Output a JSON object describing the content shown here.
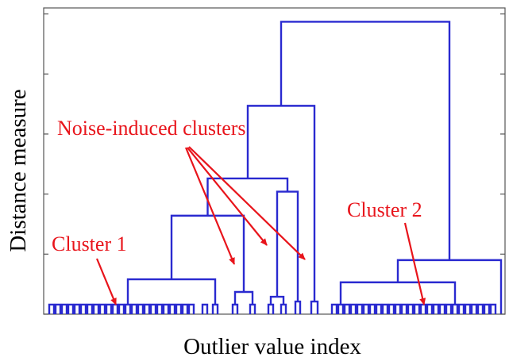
{
  "chart_data": {
    "type": "dendrogram",
    "x_label": "Outlier value index",
    "y_label": "Distance measure",
    "annotations": {
      "noise": "Noise-induced clusters",
      "cluster1": "Cluster 1",
      "cluster2": "Cluster 2"
    },
    "color": "#2a2ad0",
    "xlim": [
      0,
      58.1
    ],
    "ylim": [
      0,
      5.1
    ],
    "yticks": [
      0,
      1,
      2,
      3,
      4,
      5
    ],
    "links": [
      [
        0.7,
        1.3,
        0,
        0,
        0.16
      ],
      [
        1.5,
        2.1,
        0,
        0,
        0.16
      ],
      [
        2.3,
        2.9,
        0,
        0,
        0.16
      ],
      [
        3.1,
        3.7,
        0,
        0,
        0.16
      ],
      [
        3.9,
        4.5,
        0,
        0,
        0.16
      ],
      [
        4.7,
        5.3,
        0,
        0,
        0.16
      ],
      [
        5.5,
        6.1,
        0,
        0,
        0.16
      ],
      [
        6.3,
        6.9,
        0,
        0,
        0.16
      ],
      [
        7.1,
        7.7,
        0,
        0,
        0.16
      ],
      [
        7.9,
        8.5,
        0,
        0,
        0.16
      ],
      [
        8.7,
        9.3,
        0,
        0,
        0.16
      ],
      [
        9.5,
        10.1,
        0,
        0,
        0.16
      ],
      [
        10.3,
        10.9,
        0,
        0,
        0.16
      ],
      [
        11.1,
        11.7,
        0,
        0,
        0.16
      ],
      [
        11.9,
        12.5,
        0,
        0,
        0.16
      ],
      [
        12.7,
        13.3,
        0,
        0,
        0.16
      ],
      [
        13.5,
        14.1,
        0,
        0,
        0.16
      ],
      [
        14.3,
        14.9,
        0,
        0,
        0.16
      ],
      [
        15.1,
        15.7,
        0,
        0,
        0.16
      ],
      [
        15.9,
        16.5,
        0,
        0,
        0.16
      ],
      [
        16.7,
        17.3,
        0,
        0,
        0.16
      ],
      [
        17.5,
        18.1,
        0,
        0,
        0.16
      ],
      [
        18.3,
        18.9,
        0,
        0,
        0.16
      ],
      [
        20.0,
        20.6,
        0,
        0,
        0.16
      ],
      [
        21.3,
        21.9,
        0,
        0,
        0.16
      ],
      [
        10.6,
        21.6,
        0.16,
        0.16,
        0.58
      ],
      [
        23.8,
        24.4,
        0,
        0,
        0.16
      ],
      [
        26.0,
        26.6,
        0,
        0,
        0.16
      ],
      [
        24.1,
        26.3,
        0.16,
        0.16,
        0.37
      ],
      [
        16.1,
        25.2,
        0.58,
        0.37,
        1.64
      ],
      [
        28.3,
        28.9,
        0,
        0,
        0.16
      ],
      [
        29.9,
        30.5,
        0,
        0,
        0.16
      ],
      [
        28.6,
        30.2,
        0.16,
        0.16,
        0.29
      ],
      [
        31.7,
        32.3,
        0,
        0,
        0.21
      ],
      [
        29.4,
        32.0,
        0.29,
        0.21,
        2.04
      ],
      [
        20.65,
        30.7,
        1.64,
        2.04,
        2.26
      ],
      [
        33.7,
        34.5,
        0,
        0,
        0.21
      ],
      [
        25.7,
        34.1,
        2.26,
        0.21,
        3.47
      ],
      [
        36.3,
        36.9,
        0,
        0,
        0.16
      ],
      [
        37.1,
        37.7,
        0,
        0,
        0.16
      ],
      [
        37.9,
        38.5,
        0,
        0,
        0.16
      ],
      [
        38.7,
        39.3,
        0,
        0,
        0.16
      ],
      [
        39.5,
        40.1,
        0,
        0,
        0.16
      ],
      [
        40.3,
        40.9,
        0,
        0,
        0.16
      ],
      [
        41.1,
        41.7,
        0,
        0,
        0.16
      ],
      [
        41.9,
        42.5,
        0,
        0,
        0.16
      ],
      [
        42.7,
        43.3,
        0,
        0,
        0.16
      ],
      [
        43.5,
        44.1,
        0,
        0,
        0.16
      ],
      [
        44.3,
        44.9,
        0,
        0,
        0.16
      ],
      [
        45.1,
        45.7,
        0,
        0,
        0.16
      ],
      [
        45.9,
        46.5,
        0,
        0,
        0.16
      ],
      [
        46.7,
        47.3,
        0,
        0,
        0.16
      ],
      [
        47.5,
        48.1,
        0,
        0,
        0.16
      ],
      [
        48.3,
        48.9,
        0,
        0,
        0.16
      ],
      [
        49.1,
        49.7,
        0,
        0,
        0.16
      ],
      [
        49.9,
        50.5,
        0,
        0,
        0.16
      ],
      [
        50.7,
        51.3,
        0,
        0,
        0.16
      ],
      [
        51.5,
        52.1,
        0,
        0,
        0.16
      ],
      [
        52.3,
        52.9,
        0,
        0,
        0.16
      ],
      [
        53.1,
        53.7,
        0,
        0,
        0.16
      ],
      [
        53.9,
        54.5,
        0,
        0,
        0.16
      ],
      [
        54.7,
        55.3,
        0,
        0,
        0.16
      ],
      [
        55.5,
        56.1,
        0,
        0,
        0.16
      ],
      [
        56.3,
        56.9,
        0,
        0,
        0.16
      ],
      [
        37.4,
        51.8,
        0.16,
        0.16,
        0.53
      ],
      [
        44.6,
        57.6,
        0.53,
        0,
        0.9
      ],
      [
        29.9,
        51.1,
        3.47,
        0.9,
        4.87
      ]
    ]
  }
}
